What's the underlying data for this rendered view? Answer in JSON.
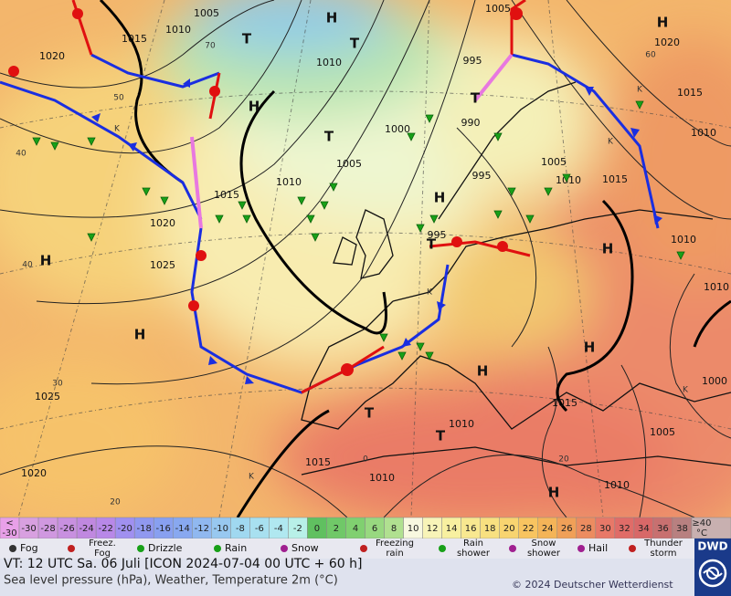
{
  "map": {
    "pressure_labels": [
      "1005",
      "1010",
      "1015",
      "1020",
      "H",
      "1005",
      "H",
      "1020",
      "T",
      "T",
      "1010",
      "995",
      "T",
      "990",
      "H",
      "T",
      "1000",
      "1005",
      "995",
      "1005",
      "1010",
      "1015",
      "1015",
      "1010",
      "1010",
      "1015",
      "H",
      "1020",
      "995",
      "T",
      "H",
      "1010",
      "1025",
      "H",
      "1010",
      "H",
      "H",
      "H",
      "1015",
      "1000",
      "1025",
      "T",
      "1010",
      "T",
      "1005",
      "1015",
      "1010",
      "1020",
      "1010",
      "H"
    ],
    "temperature_labels": [
      "70",
      "60",
      "50",
      "40",
      "40",
      "30",
      "20",
      "20",
      "0",
      "K",
      "K",
      "K",
      "K",
      "K",
      "K"
    ]
  },
  "scale": {
    "low_label": "<",
    "high_label": "≥40",
    "unit": "°C",
    "values": [
      -30,
      -30,
      -28,
      -26,
      -24,
      -22,
      -20,
      -18,
      -16,
      -14,
      -12,
      -10,
      -8,
      -6,
      -4,
      -2,
      0,
      2,
      4,
      6,
      8,
      10,
      12,
      14,
      16,
      18,
      20,
      22,
      24,
      26,
      28,
      30,
      32,
      34,
      36,
      38
    ],
    "colors": [
      "#e8a0e8",
      "#d8a0e0",
      "#d098e0",
      "#c890e0",
      "#c088e0",
      "#b888e8",
      "#a090f0",
      "#9098f0",
      "#88a0f0",
      "#88a8f0",
      "#90b8f0",
      "#98c8f0",
      "#a0d8f0",
      "#a8e0f0",
      "#b0e8f0",
      "#b8f0e8",
      "#60c060",
      "#70c868",
      "#80d070",
      "#98d880",
      "#b0e090",
      "#f8f8e0",
      "#f8f4b8",
      "#f8f0a0",
      "#f8e890",
      "#f8e080",
      "#f8d470",
      "#f8c460",
      "#f4b458",
      "#f0a058",
      "#ec8c60",
      "#e87868",
      "#e06c68",
      "#d86868",
      "#c87070",
      "#b88080"
    ],
    "high_color": "#c8b0b0"
  },
  "legend": [
    "Fog",
    "Freez.\nFog",
    "Drizzle",
    "Rain",
    "Snow",
    "Freezing\nrain",
    "Rain\nshower",
    "Snow\nshower",
    "Hail",
    "Thunder\nstorm"
  ],
  "footer": {
    "valid_time": "VT: 12 UTC Sa.  06 Juli [ICON 2024-07-04  00 UTC + 60 h]",
    "description": "Sea level pressure (hPa), Weather, Temperature 2m (°C)",
    "copyright": "© 2024 Deutscher Wetterdienst",
    "logo": "DWD"
  }
}
